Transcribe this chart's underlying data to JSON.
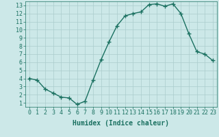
{
  "x": [
    0,
    1,
    2,
    3,
    4,
    5,
    6,
    7,
    8,
    9,
    10,
    11,
    12,
    13,
    14,
    15,
    16,
    17,
    18,
    19,
    20,
    21,
    22,
    23
  ],
  "y": [
    4.0,
    3.8,
    2.7,
    2.2,
    1.7,
    1.6,
    0.8,
    1.2,
    3.8,
    6.3,
    8.5,
    10.5,
    11.7,
    12.0,
    12.2,
    13.1,
    13.2,
    12.9,
    13.2,
    12.0,
    9.5,
    7.3,
    7.0,
    6.2
  ],
  "line_color": "#1a7060",
  "marker": "+",
  "markersize": 4,
  "linewidth": 1.0,
  "background_color": "#cce8e8",
  "grid_color": "#aacccc",
  "xlabel": "Humidex (Indice chaleur)",
  "xlabel_fontsize": 7,
  "tick_fontsize": 6,
  "xlim": [
    -0.5,
    23.5
  ],
  "ylim": [
    0.5,
    13.5
  ],
  "yticks": [
    1,
    2,
    3,
    4,
    5,
    6,
    7,
    8,
    9,
    10,
    11,
    12,
    13
  ],
  "xticks": [
    0,
    1,
    2,
    3,
    4,
    5,
    6,
    7,
    8,
    9,
    10,
    11,
    12,
    13,
    14,
    15,
    16,
    17,
    18,
    19,
    20,
    21,
    22,
    23
  ]
}
